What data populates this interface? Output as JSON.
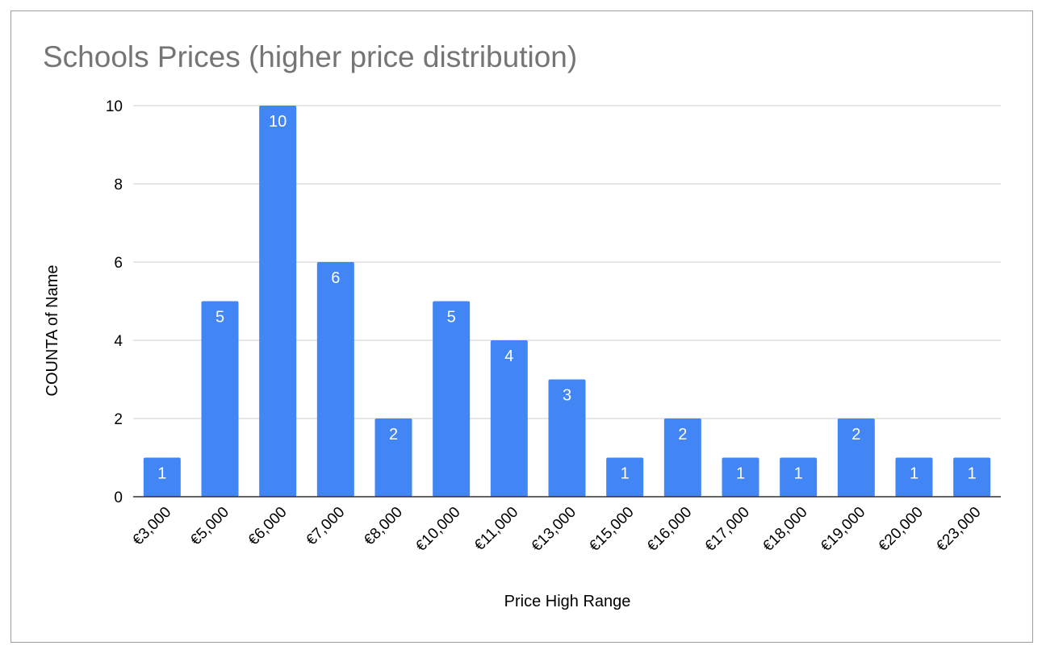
{
  "chart_data": {
    "type": "bar",
    "title": "Schools Prices (higher price distribution)",
    "xlabel": "Price High Range",
    "ylabel": "COUNTA of Name",
    "categories": [
      "€3,000",
      "€5,000",
      "€6,000",
      "€7,000",
      "€8,000",
      "€10,000",
      "€11,000",
      "€13,000",
      "€15,000",
      "€16,000",
      "€17,000",
      "€18,000",
      "€19,000",
      "€20,000",
      "€23,000"
    ],
    "values": [
      1,
      5,
      10,
      6,
      2,
      5,
      4,
      3,
      1,
      2,
      1,
      1,
      2,
      1,
      1
    ],
    "ylim": [
      0,
      10
    ],
    "yticks": [
      "0",
      "2",
      "4",
      "6",
      "8",
      "10"
    ],
    "grid": true,
    "legend": "none",
    "colors": {
      "bar": "#4285f4",
      "grid": "#cccccc",
      "axis": "#333333",
      "title": "#757575",
      "data_label": "#ffffff"
    }
  }
}
